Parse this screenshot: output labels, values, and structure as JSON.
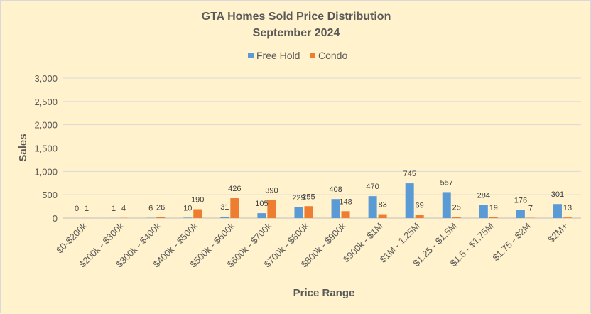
{
  "chart_data": {
    "type": "bar",
    "title": "GTA Homes Sold Price Distribution",
    "subtitle": "September 2024",
    "xlabel": "Price Range",
    "ylabel": "Sales",
    "ylim": [
      0,
      3000
    ],
    "yticks": [
      "0",
      "500",
      "1,000",
      "1,500",
      "2,000",
      "2,500",
      "3,000"
    ],
    "ytick_values": [
      0,
      500,
      1000,
      1500,
      2000,
      2500,
      3000
    ],
    "grid": true,
    "legend_position": "top",
    "categories": [
      "$0-$200k",
      "$200k - $300k",
      "$300k - $400k",
      "$400k - $500k",
      "$500k - $600k",
      "$600k - $700k",
      "$700k - $800k",
      "$800k - $900k",
      "$900k - $1M",
      "$1M - 1.25M",
      "$1.25 - $1.5M",
      "$1.5 - $1.75M",
      "$1.75 - $2M",
      "$2M+"
    ],
    "series": [
      {
        "name": "Free Hold",
        "color": "#5B9BD5",
        "values": [
          0,
          1,
          6,
          10,
          31,
          105,
          229,
          408,
          470,
          745,
          557,
          284,
          176,
          301
        ]
      },
      {
        "name": "Condo",
        "color": "#ED7D31",
        "values": [
          1,
          4,
          26,
          190,
          426,
          390,
          255,
          148,
          83,
          69,
          25,
          19,
          7,
          13
        ]
      }
    ]
  }
}
